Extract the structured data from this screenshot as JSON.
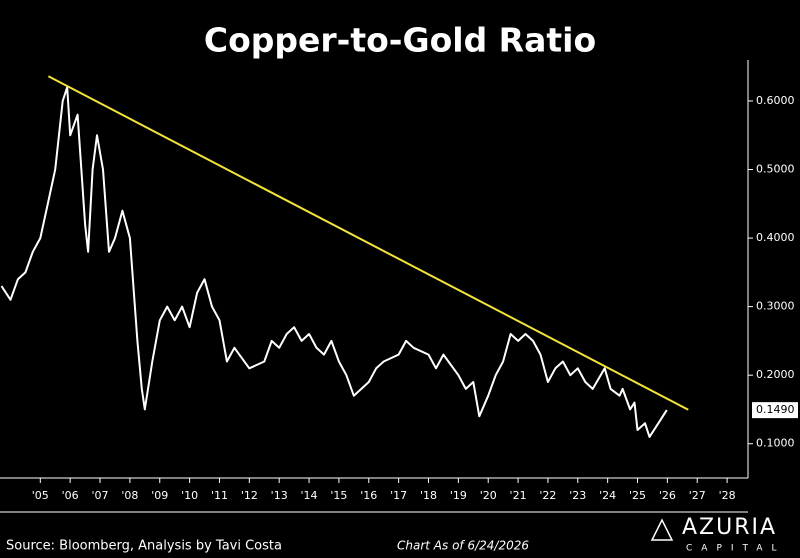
{
  "chart_data": {
    "type": "line",
    "title": "Copper-to-Gold Ratio",
    "color": "#ffffff",
    "x": [
      2004.2,
      2004.5,
      2004.75,
      2005.0,
      2005.25,
      2005.5,
      2005.75,
      2006.0,
      2006.25,
      2006.4,
      2006.5,
      2006.75,
      2007.0,
      2007.1,
      2007.25,
      2007.4,
      2007.6,
      2007.8,
      2008.0,
      2008.25,
      2008.5,
      2008.75,
      2008.9,
      2009.0,
      2009.25,
      2009.5,
      2009.75,
      2010.0,
      2010.25,
      2010.5,
      2010.75,
      2011.0,
      2011.25,
      2011.5,
      2011.75,
      2012.0,
      2012.5,
      2013.0,
      2013.25,
      2013.5,
      2013.75,
      2014.0,
      2014.25,
      2014.5,
      2014.75,
      2015.0,
      2015.25,
      2015.5,
      2015.75,
      2016.0,
      2016.5,
      2016.75,
      2017.0,
      2017.5,
      2017.75,
      2018.0,
      2018.5,
      2018.75,
      2019.0,
      2019.5,
      2019.75,
      2020.0,
      2020.2,
      2020.5,
      2020.75,
      2021.0,
      2021.25,
      2021.5,
      2021.75,
      2022.0,
      2022.25,
      2022.5,
      2022.75,
      2023.0,
      2023.25,
      2023.5,
      2023.75,
      2024.0,
      2024.4,
      2024.6,
      2024.9,
      2025.0,
      2025.25,
      2025.4,
      2025.5,
      2025.75,
      2025.9,
      2026.2,
      2026.48
    ],
    "values": [
      0.33,
      0.31,
      0.34,
      0.35,
      0.38,
      0.4,
      0.45,
      0.5,
      0.6,
      0.62,
      0.55,
      0.58,
      0.42,
      0.38,
      0.5,
      0.55,
      0.5,
      0.38,
      0.4,
      0.44,
      0.4,
      0.25,
      0.18,
      0.15,
      0.22,
      0.28,
      0.3,
      0.28,
      0.3,
      0.27,
      0.32,
      0.34,
      0.3,
      0.28,
      0.22,
      0.24,
      0.21,
      0.22,
      0.25,
      0.24,
      0.26,
      0.27,
      0.25,
      0.26,
      0.24,
      0.23,
      0.25,
      0.22,
      0.2,
      0.17,
      0.19,
      0.21,
      0.22,
      0.23,
      0.25,
      0.24,
      0.23,
      0.21,
      0.23,
      0.2,
      0.18,
      0.19,
      0.14,
      0.17,
      0.2,
      0.22,
      0.26,
      0.25,
      0.26,
      0.25,
      0.23,
      0.19,
      0.21,
      0.22,
      0.2,
      0.21,
      0.19,
      0.18,
      0.21,
      0.18,
      0.17,
      0.18,
      0.15,
      0.16,
      0.12,
      0.13,
      0.11,
      0.13,
      0.149
    ],
    "value_label": {
      "value": 0.149,
      "label": "0.1490"
    },
    "trendline": {
      "x": [
        2005.77,
        2027.2
      ],
      "values": [
        0.636,
        0.1496
      ],
      "color": "#f2e33a"
    },
    "xlim": [
      2004.15,
      2029.2
    ],
    "ylim": [
      0.05,
      0.65
    ],
    "xticks": [
      {
        "value": 2005.5,
        "label": "'05"
      },
      {
        "value": 2006.5,
        "label": "'06"
      },
      {
        "value": 2007.5,
        "label": "'07"
      },
      {
        "value": 2008.5,
        "label": "'08"
      },
      {
        "value": 2009.5,
        "label": "'09"
      },
      {
        "value": 2010.5,
        "label": "'10"
      },
      {
        "value": 2011.5,
        "label": "'11"
      },
      {
        "value": 2012.5,
        "label": "'12"
      },
      {
        "value": 2013.5,
        "label": "'13"
      },
      {
        "value": 2014.5,
        "label": "'14"
      },
      {
        "value": 2015.5,
        "label": "'15"
      },
      {
        "value": 2016.5,
        "label": "'16"
      },
      {
        "value": 2017.5,
        "label": "'17"
      },
      {
        "value": 2018.5,
        "label": "'18"
      },
      {
        "value": 2019.5,
        "label": "'19"
      },
      {
        "value": 2020.5,
        "label": "'20"
      },
      {
        "value": 2021.5,
        "label": "'21"
      },
      {
        "value": 2022.5,
        "label": "'22"
      },
      {
        "value": 2023.5,
        "label": "'23"
      },
      {
        "value": 2024.5,
        "label": "'24"
      },
      {
        "value": 2025.5,
        "label": "'25"
      },
      {
        "value": 2026.5,
        "label": "'26"
      },
      {
        "value": 2027.5,
        "label": "'27"
      },
      {
        "value": 2028.5,
        "label": "'28"
      }
    ],
    "yticks": [
      {
        "value": 0.1,
        "label": "0.1000"
      },
      {
        "value": 0.2,
        "label": "0.2000"
      },
      {
        "value": 0.3,
        "label": "0.3000"
      },
      {
        "value": 0.4,
        "label": "0.4000"
      },
      {
        "value": 0.5,
        "label": "0.5000"
      },
      {
        "value": 0.6,
        "label": "0.6000"
      }
    ],
    "source": "Source: Bloomberg, Analysis by Tavi Costa",
    "date_note": "Chart As of 6/24/2026",
    "logo": {
      "name": "AZURIA",
      "sub": "CAPITAL"
    }
  }
}
